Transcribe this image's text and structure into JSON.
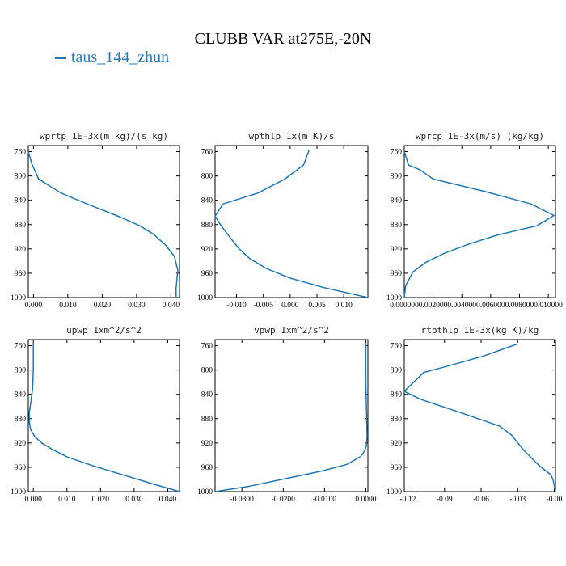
{
  "title": "CLUBB VAR at275E,-20N",
  "legend": {
    "label": "taus_144_zhun",
    "color": "#1f77b4"
  },
  "chart_data": [
    {
      "type": "line",
      "title": "wprtp  1E-3x(m kg)/(s kg)",
      "xlim": [
        -0.0015,
        0.0425
      ],
      "ylim": [
        1000,
        750
      ],
      "x_ticks": [
        "0.000",
        "0.010",
        "0.020",
        "0.030",
        "0.040"
      ],
      "x_tick_values": [
        0.0,
        0.01,
        0.02,
        0.03,
        0.04
      ],
      "y_ticks": [
        "760",
        "800",
        "840",
        "880",
        "920",
        "960",
        "1000"
      ],
      "series": [
        {
          "x": [
            -0.0015,
            -0.0005,
            0.0015,
            0.008,
            0.016,
            0.025,
            0.031,
            0.035,
            0.0385,
            0.041,
            0.042,
            0.0415,
            0.0415
          ],
          "y": [
            760,
            780,
            805,
            828,
            847,
            867,
            882,
            896,
            914,
            932,
            955,
            985,
            1000
          ]
        }
      ]
    },
    {
      "type": "line",
      "title": "wpthlp  1x(m K)/s",
      "xlim": [
        -0.014,
        0.0145
      ],
      "ylim": [
        1000,
        750
      ],
      "x_ticks": [
        "-0.010",
        "-0.005",
        "0.000",
        "0.005",
        "0.010"
      ],
      "x_tick_values": [
        -0.01,
        -0.005,
        0.0,
        0.005,
        0.01
      ],
      "y_ticks": [
        "760",
        "800",
        "840",
        "880",
        "920",
        "960",
        "1000"
      ],
      "series": [
        {
          "x": [
            0.0035,
            0.0025,
            -0.001,
            -0.006,
            -0.0125,
            -0.014,
            -0.013,
            -0.0115,
            -0.0095,
            -0.0075,
            -0.0045,
            0.0,
            0.006,
            0.0145
          ],
          "y": [
            758,
            782,
            805,
            828,
            846,
            866,
            880,
            898,
            920,
            936,
            952,
            968,
            983,
            1000
          ]
        }
      ]
    },
    {
      "type": "line",
      "title": "wprcp  1E-3x(m/s) (kg/kg)",
      "xlim": [
        0.0,
        0.0105
      ],
      "ylim": [
        1000,
        750
      ],
      "x_ticks": [
        "0.000000",
        "0.002000",
        "0.004000",
        "0.006000",
        "0.008000",
        "0.010000"
      ],
      "x_tick_values": [
        0.0,
        0.002,
        0.004,
        0.006,
        0.008,
        0.01
      ],
      "y_ticks": [
        "760",
        "800",
        "840",
        "880",
        "920",
        "960",
        "1000"
      ],
      "series": [
        {
          "x": [
            0.0,
            0.0003,
            0.0011,
            0.002,
            0.0055,
            0.0088,
            0.0104,
            0.0092,
            0.0065,
            0.0045,
            0.0028,
            0.0015,
            0.0006,
            0.0001,
            0.0
          ],
          "y": [
            760,
            782,
            790,
            805,
            825,
            846,
            865,
            882,
            897,
            912,
            927,
            942,
            958,
            980,
            1000
          ]
        }
      ]
    },
    {
      "type": "line",
      "title": "upwp  1xm^2/s^2",
      "xlim": [
        -0.0015,
        0.0435
      ],
      "ylim": [
        1000,
        750
      ],
      "x_ticks": [
        "0.000",
        "0.010",
        "0.020",
        "0.030",
        "0.040"
      ],
      "x_tick_values": [
        0.0,
        0.01,
        0.02,
        0.03,
        0.04
      ],
      "y_ticks": [
        "760",
        "800",
        "840",
        "880",
        "920",
        "960",
        "1000"
      ],
      "series": [
        {
          "x": [
            0.0,
            0.0,
            -0.0002,
            -0.0008,
            -0.0012,
            -0.0012,
            -0.0008,
            0.0005,
            0.0025,
            0.0055,
            0.01,
            0.018,
            0.027,
            0.036,
            0.0435
          ],
          "y": [
            755,
            800,
            830,
            855,
            870,
            885,
            898,
            910,
            920,
            930,
            943,
            958,
            973,
            988,
            1000
          ]
        }
      ]
    },
    {
      "type": "line",
      "title": "vpwp  1xm^2/s^2",
      "xlim": [
        -0.0365,
        0.0005
      ],
      "ylim": [
        1000,
        750
      ],
      "x_ticks": [
        "-0.0300",
        "-0.0200",
        "-0.0100",
        "0.0000"
      ],
      "x_tick_values": [
        -0.03,
        -0.02,
        -0.01,
        0.0
      ],
      "y_ticks": [
        "760",
        "800",
        "840",
        "880",
        "920",
        "960",
        "1000"
      ],
      "series": [
        {
          "x": [
            0.0,
            0.0,
            0.0002,
            0.0003,
            0.0001,
            -0.0002,
            -0.0012,
            -0.0045,
            -0.0105,
            -0.019,
            -0.028,
            -0.0365
          ],
          "y": [
            755,
            820,
            880,
            910,
            925,
            932,
            942,
            955,
            966,
            978,
            991,
            1000
          ]
        }
      ]
    },
    {
      "type": "line",
      "title": "rtpthlp  1E-3x(kg K)/kg",
      "xlim": [
        -0.123,
        0.001
      ],
      "ylim": [
        1000,
        750
      ],
      "x_ticks": [
        "-0.12",
        "-0.09",
        "-0.06",
        "-0.03",
        "-0.00"
      ],
      "x_tick_values": [
        -0.12,
        -0.09,
        -0.06,
        -0.03,
        0.0
      ],
      "y_ticks": [
        "760",
        "800",
        "840",
        "880",
        "920",
        "960",
        "1000"
      ],
      "series": [
        {
          "x": [
            -0.03,
            -0.058,
            -0.09,
            -0.107,
            -0.123,
            -0.11,
            -0.08,
            -0.045,
            -0.035,
            -0.025,
            -0.012,
            -0.003,
            -0.001,
            0.0,
            0.001
          ],
          "y": [
            757,
            777,
            795,
            804,
            835,
            848,
            868,
            892,
            907,
            932,
            958,
            972,
            980,
            990,
            1000
          ]
        }
      ]
    }
  ]
}
